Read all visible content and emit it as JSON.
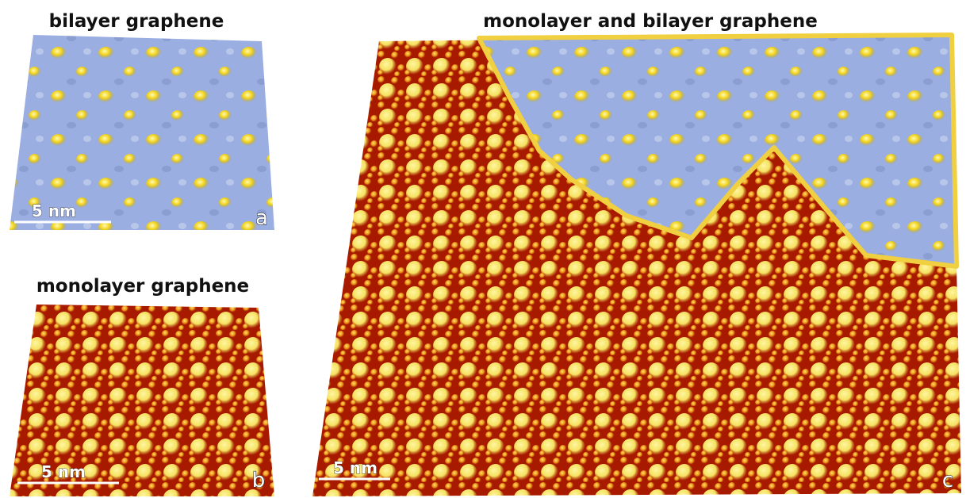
{
  "panels": [
    {
      "title": "bilayer graphene",
      "scale_bar": "5 nm",
      "label": "a"
    },
    {
      "title": "monolayer graphene",
      "scale_bar": "5 nm",
      "label": "b"
    },
    {
      "title": "monolayer and bilayer graphene",
      "scale_bar": "5 nm",
      "label": "c"
    }
  ]
}
